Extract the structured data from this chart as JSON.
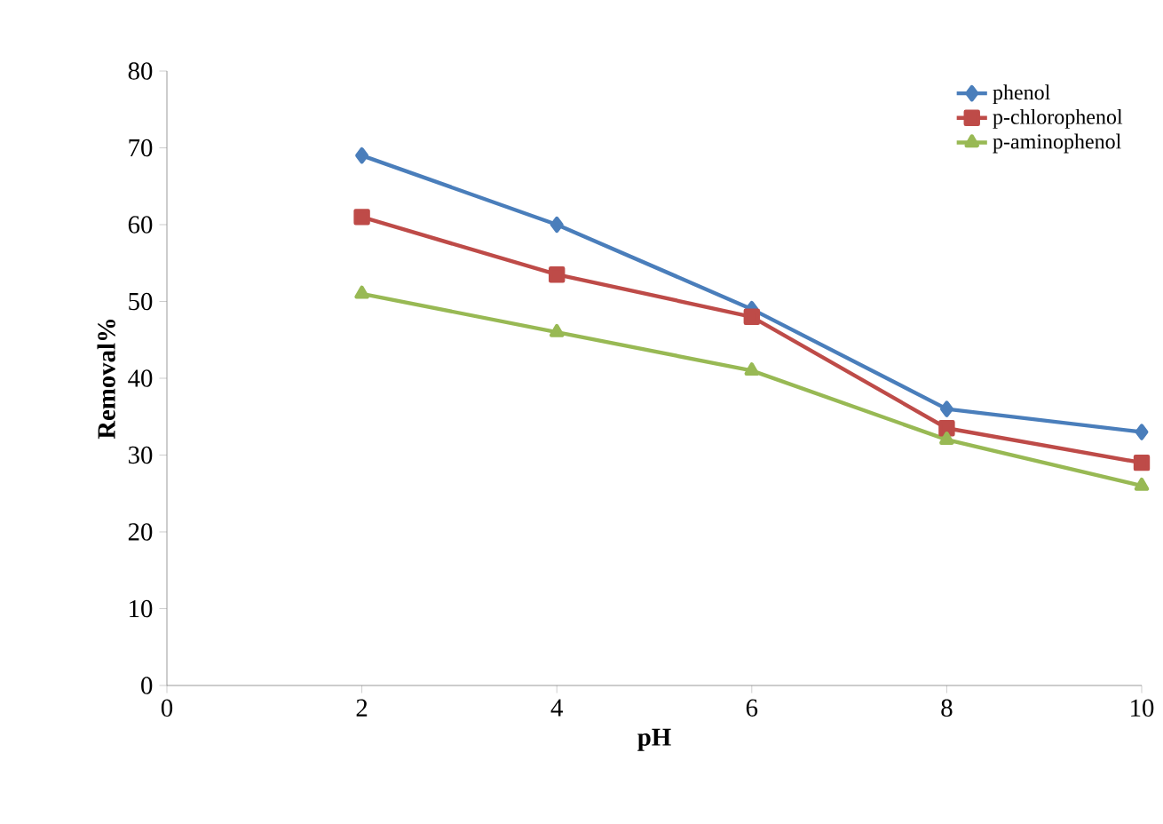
{
  "chart_data": {
    "type": "line",
    "xlabel": "pH",
    "ylabel": "Removal%",
    "x": [
      2,
      4,
      6,
      8,
      10
    ],
    "series": [
      {
        "name": "phenol",
        "color": "#4a7ebb",
        "marker": "diamond",
        "values": [
          69,
          60,
          49,
          36,
          33
        ]
      },
      {
        "name": "p-chlorophenol",
        "color": "#be4b48",
        "marker": "square",
        "values": [
          61,
          53.5,
          48,
          33.5,
          29
        ]
      },
      {
        "name": "p-aminophenol",
        "color": "#98b954",
        "marker": "triangle",
        "values": [
          51,
          46,
          41,
          32,
          26
        ]
      }
    ],
    "xlim": [
      0,
      10
    ],
    "ylim": [
      0,
      80
    ],
    "xticks": [
      0,
      2,
      4,
      6,
      8,
      10
    ],
    "yticks": [
      0,
      10,
      20,
      30,
      40,
      50,
      60,
      70,
      80
    ],
    "grid": false,
    "legend": "top right",
    "line_style": "solid"
  }
}
